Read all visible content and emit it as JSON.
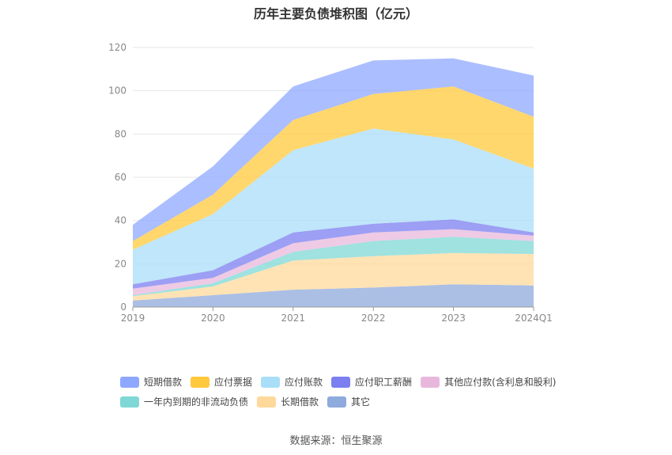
{
  "chart_data": {
    "type": "area",
    "stacked": true,
    "title": "历年主要负债堆积图（亿元）",
    "categories": [
      "2019",
      "2020",
      "2021",
      "2022",
      "2023",
      "2024Q1"
    ],
    "ylim": [
      0,
      120
    ],
    "yticks": [
      0,
      20,
      40,
      60,
      80,
      100,
      120
    ],
    "grid": true,
    "legend_position": "bottom",
    "series": [
      {
        "name": "其它",
        "color": "#8faadc",
        "values": [
          3,
          5.5,
          8,
          9,
          10.5,
          10
        ]
      },
      {
        "name": "长期借款",
        "color": "#ffd99b",
        "values": [
          2,
          4,
          13.5,
          14.5,
          14.5,
          14.5
        ]
      },
      {
        "name": "一年内到期的非流动负债",
        "color": "#7fd8d6",
        "values": [
          0.5,
          1.5,
          4,
          7,
          7.5,
          6
        ]
      },
      {
        "name": "其他应付款(含利息和股利)",
        "color": "#e8b8dc",
        "values": [
          3,
          2.5,
          4,
          4,
          3.5,
          2.5
        ]
      },
      {
        "name": "应付职工薪酬",
        "color": "#7b7ff0",
        "values": [
          2,
          3.5,
          5,
          4,
          4.5,
          1.5
        ]
      },
      {
        "name": "应付账款",
        "color": "#a9def8",
        "values": [
          16,
          26,
          38,
          44,
          37,
          29.5
        ]
      },
      {
        "name": "应付票据",
        "color": "#ffc93c",
        "values": [
          4,
          9,
          14,
          16,
          24.5,
          24
        ]
      },
      {
        "name": "短期借款",
        "color": "#8fa8ff",
        "values": [
          7.5,
          13,
          15.5,
          15.5,
          13,
          19
        ]
      }
    ],
    "legend_order": [
      "短期借款",
      "应付票据",
      "应付账款",
      "应付职工薪酬",
      "其他应付款(含利息和股利)",
      "一年内到期的非流动负债",
      "长期借款",
      "其它"
    ]
  },
  "source_text": "数据来源：恒生聚源"
}
